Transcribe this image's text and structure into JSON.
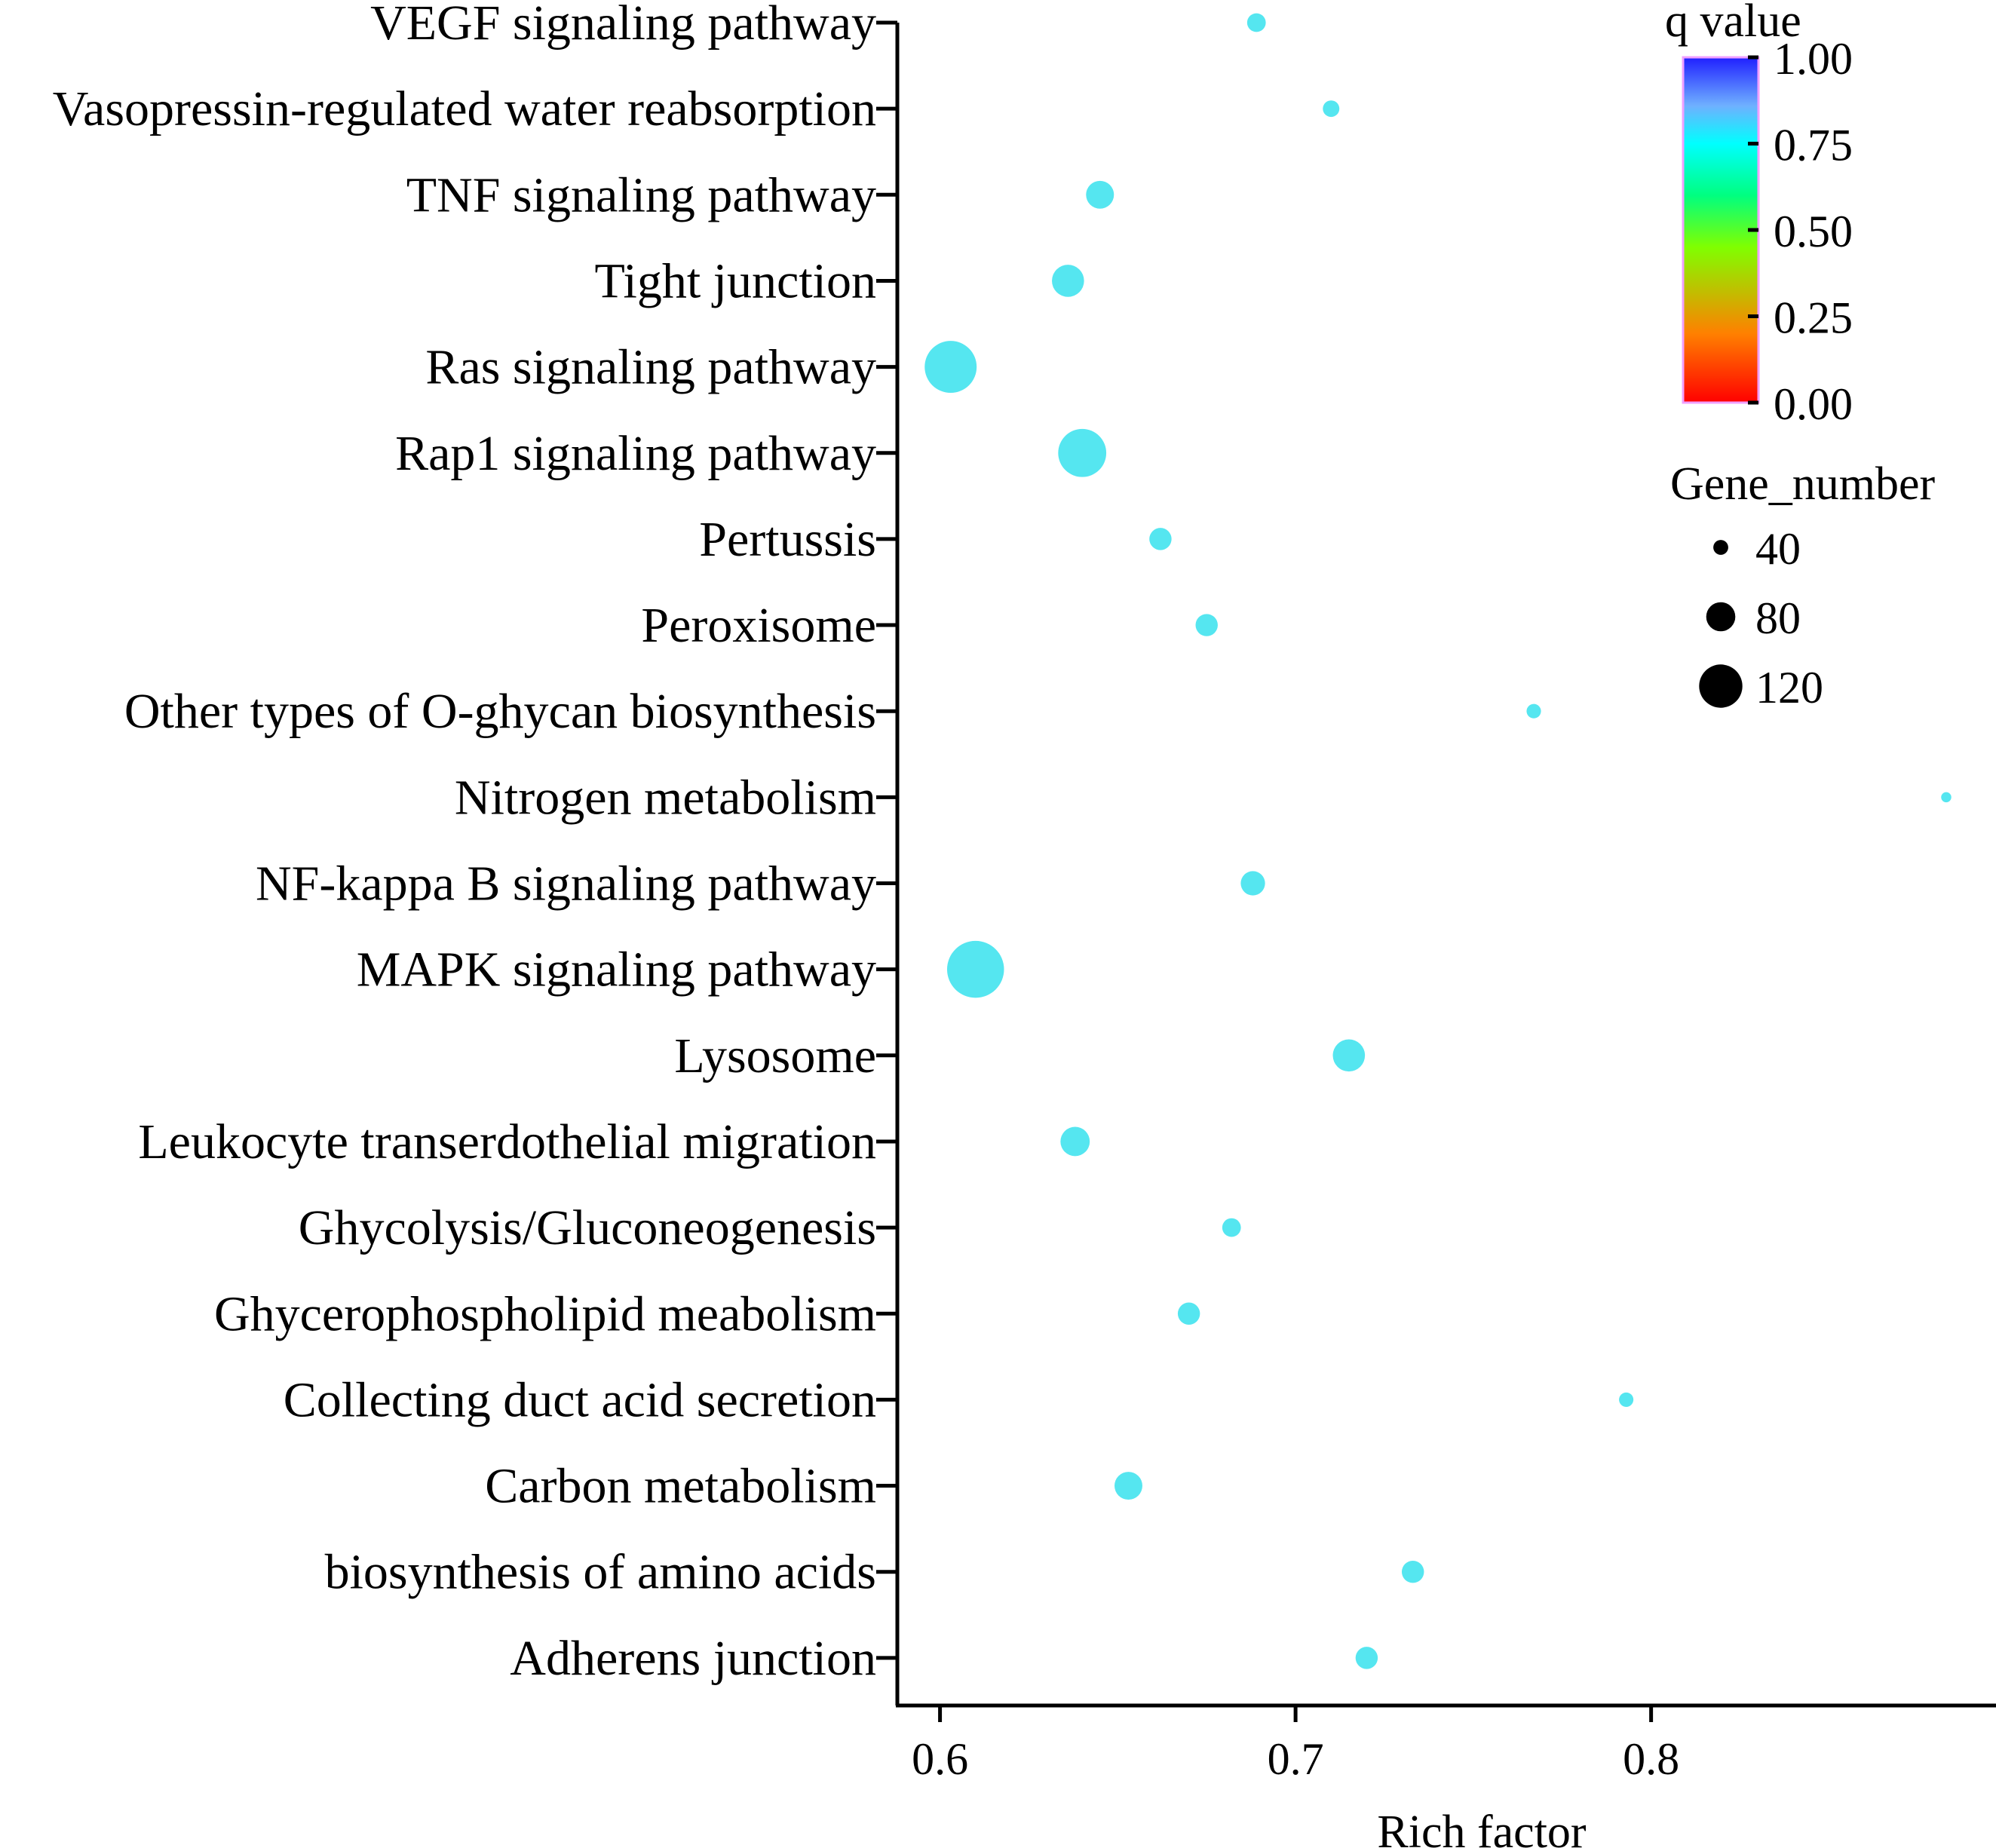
{
  "chart_data": {
    "type": "scatter",
    "subtype": "bubble",
    "title": "",
    "xlabel": "Rich factor",
    "ylabel": "",
    "xlim": [
      0.588,
      0.897
    ],
    "xticks": [
      0.6,
      0.7,
      0.8
    ],
    "xtick_labels": [
      "0.6",
      "0.7",
      "0.8"
    ],
    "categories": [
      "VEGF signaling pathway",
      "Vasopressin-regulated water reabsorption",
      "TNF signaling pathway",
      "Tight junction",
      "Ras signaling pathway",
      "Rap1 signaling pathway",
      "Pertussis",
      "Peroxisome",
      "Other types of O-ghycan biosynthesis",
      "Nitrogen metabolism",
      "NF-kappa B signaling pathway",
      "MAPK signaling pathway",
      "Lysosome",
      "Leukocyte transerdothelial migration",
      "Ghycolysis/Gluconeogenesis",
      "Ghycerophospholipid meabolism",
      "Collecting  duct acid secretion",
      "Carbon metabolism",
      "biosynthesis of amino acids",
      "Adherens junction"
    ],
    "points": [
      {
        "category": "VEGF signaling pathway",
        "rich_factor": 0.689,
        "gene_number": 42,
        "q_value": 0.77
      },
      {
        "category": "Vasopressin-regulated water reabsorption",
        "rich_factor": 0.71,
        "gene_number": 36,
        "q_value": 0.77
      },
      {
        "category": "TNF signaling pathway",
        "rich_factor": 0.645,
        "gene_number": 68,
        "q_value": 0.77
      },
      {
        "category": "Tight junction",
        "rich_factor": 0.636,
        "gene_number": 80,
        "q_value": 0.77
      },
      {
        "category": "Ras signaling pathway",
        "rich_factor": 0.603,
        "gene_number": 136,
        "q_value": 0.77
      },
      {
        "category": "Rap1 signaling pathway",
        "rich_factor": 0.64,
        "gene_number": 125,
        "q_value": 0.77
      },
      {
        "category": "Pertussis",
        "rich_factor": 0.662,
        "gene_number": 52,
        "q_value": 0.77
      },
      {
        "category": "Peroxisome",
        "rich_factor": 0.675,
        "gene_number": 52,
        "q_value": 0.77
      },
      {
        "category": "Other types of O-ghycan biosynthesis",
        "rich_factor": 0.767,
        "gene_number": 30,
        "q_value": 0.77
      },
      {
        "category": "Nitrogen metabolism",
        "rich_factor": 0.883,
        "gene_number": 18,
        "q_value": 0.77
      },
      {
        "category": "NF-kappa B signaling pathway",
        "rich_factor": 0.688,
        "gene_number": 58,
        "q_value": 0.77
      },
      {
        "category": "MAPK signaling pathway",
        "rich_factor": 0.61,
        "gene_number": 150,
        "q_value": 0.77
      },
      {
        "category": "Lysosome",
        "rich_factor": 0.715,
        "gene_number": 80,
        "q_value": 0.77
      },
      {
        "category": "Leukocyte transerdothelial migration",
        "rich_factor": 0.638,
        "gene_number": 72,
        "q_value": 0.77
      },
      {
        "category": "Ghycolysis/Gluconeogenesis",
        "rich_factor": 0.682,
        "gene_number": 42,
        "q_value": 0.77
      },
      {
        "category": "Ghycerophospholipid meabolism",
        "rich_factor": 0.67,
        "gene_number": 52,
        "q_value": 0.77
      },
      {
        "category": "Collecting  duct acid secretion",
        "rich_factor": 0.793,
        "gene_number": 30,
        "q_value": 0.77
      },
      {
        "category": "Carbon metabolism",
        "rich_factor": 0.653,
        "gene_number": 68,
        "q_value": 0.77
      },
      {
        "category": "biosynthesis of amino acids",
        "rich_factor": 0.733,
        "gene_number": 52,
        "q_value": 0.77
      },
      {
        "category": "Adherens junction",
        "rich_factor": 0.72,
        "gene_number": 52,
        "q_value": 0.77
      }
    ],
    "color_legend": {
      "title": "q value",
      "ticks": [
        "1.00",
        "0.75",
        "0.50",
        "0.25",
        "0.00"
      ],
      "stops": [
        "#ff0000",
        "#ff8000",
        "#80ff00",
        "#00ff80",
        "#00ffff",
        "#6fb0ff",
        "#2020ff"
      ]
    },
    "size_legend": {
      "title": "Gene_number",
      "values": [
        40,
        80,
        120
      ],
      "labels": [
        "40",
        "80",
        "120"
      ]
    },
    "point_color": "#55e6f0",
    "legend_marker_color": "#000000"
  }
}
